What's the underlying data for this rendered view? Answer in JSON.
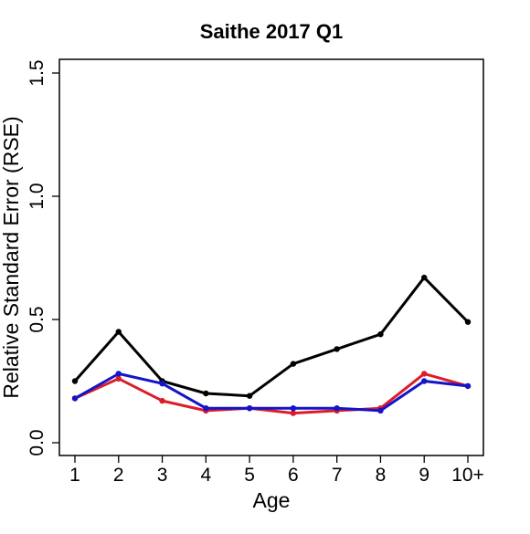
{
  "chart_data": {
    "type": "line",
    "title": "Saithe 2017 Q1",
    "xlabel": "Age",
    "ylabel": "Relative Standard Error (RSE)",
    "categories": [
      "1",
      "2",
      "3",
      "4",
      "5",
      "6",
      "7",
      "8",
      "9",
      "10+"
    ],
    "ylim": [
      0,
      1.5
    ],
    "yticks": [
      0.0,
      0.5,
      1.0,
      1.5
    ],
    "ytick_labels": [
      "0.0",
      "0.5",
      "1.0",
      "1.5"
    ],
    "grid": false,
    "legend": "none",
    "series": [
      {
        "color": "#000000",
        "values": [
          0.25,
          0.45,
          0.25,
          0.2,
          0.19,
          0.32,
          0.38,
          0.44,
          0.67,
          0.49
        ]
      },
      {
        "color": "#dd1c2b",
        "values": [
          0.18,
          0.26,
          0.17,
          0.13,
          0.14,
          0.12,
          0.13,
          0.14,
          0.28,
          0.23
        ]
      },
      {
        "color": "#1414c8",
        "values": [
          0.18,
          0.28,
          0.24,
          0.14,
          0.14,
          0.14,
          0.14,
          0.13,
          0.25,
          0.23
        ]
      }
    ]
  }
}
